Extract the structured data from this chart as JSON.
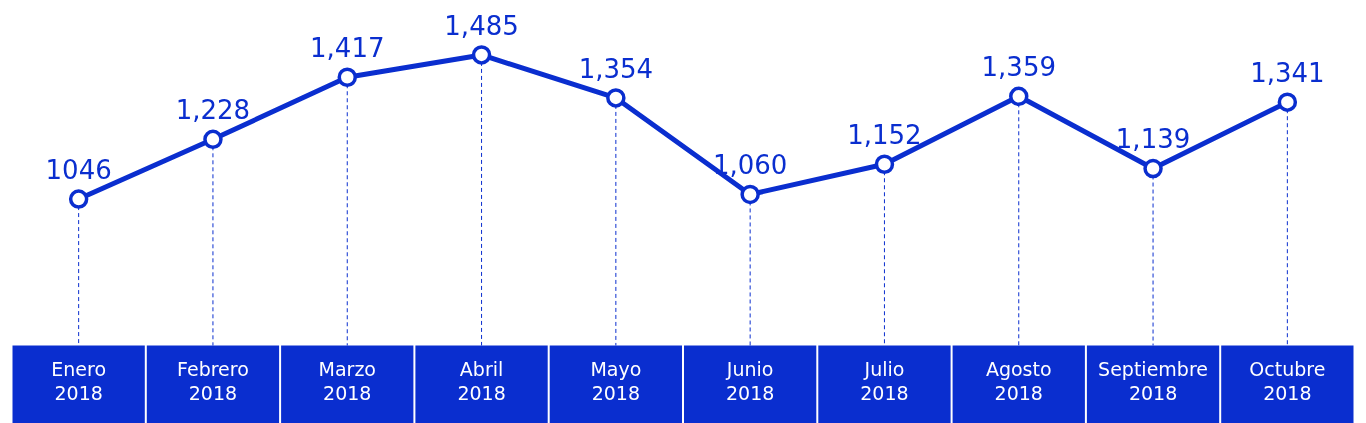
{
  "chart_data": {
    "type": "line",
    "categories": [
      "Enero 2018",
      "Febrero 2018",
      "Marzo 2018",
      "Abril 2018",
      "Mayo 2018",
      "Junio 2018",
      "Julio 2018",
      "Agosto 2018",
      "Septiembre 2018",
      "Octubre 2018"
    ],
    "series": [
      {
        "color": "#0a2ecf",
        "values": [
          1046,
          1228,
          1417,
          1485,
          1354,
          1060,
          1152,
          1359,
          1139,
          1341
        ],
        "value_labels": [
          "1046",
          "1,228",
          "1,417",
          "1,485",
          "1,354",
          "1,060",
          "1,152",
          "1,359",
          "1,139",
          "1,341"
        ]
      }
    ],
    "marker": "circle",
    "line_style": "solid",
    "grid": "x"
  }
}
